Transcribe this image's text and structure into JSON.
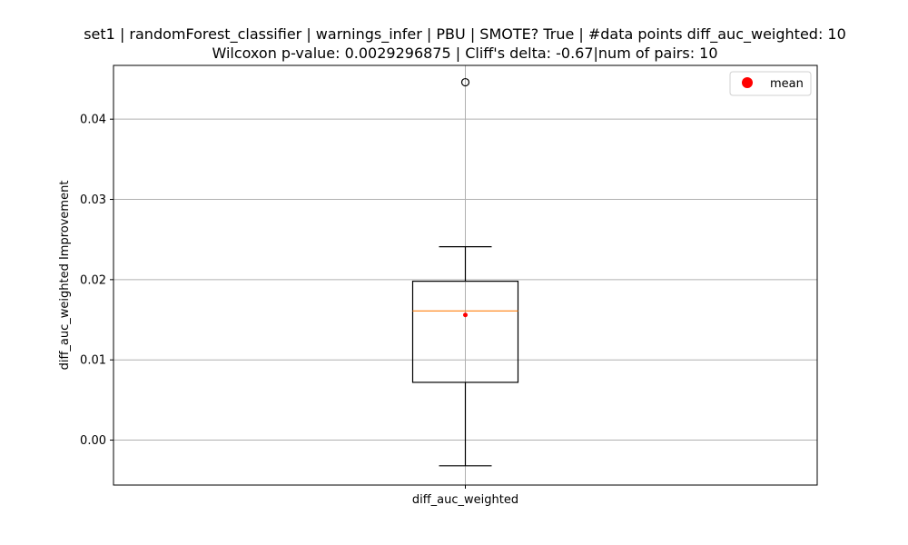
{
  "chart_data": {
    "type": "box",
    "title_line1": "set1 | randomForest_classifier | warnings_infer | PBU | SMOTE? True | #data points diff_auc_weighted: 10",
    "title_line2": "Wilcoxon p-value: 0.0029296875 | Cliff's delta: -0.67|num of pairs: 10",
    "xlabel": "",
    "ylabel": "diff_auc_weighted Improvement",
    "categories": [
      "diff_auc_weighted"
    ],
    "ylim": [
      -0.0056,
      0.0467
    ],
    "yticks": [
      0.0,
      0.01,
      0.02,
      0.03,
      0.04
    ],
    "ytick_labels": [
      "0.00",
      "0.01",
      "0.02",
      "0.03",
      "0.04"
    ],
    "grid": true,
    "legend": {
      "position": "top-right",
      "entries": [
        "mean"
      ]
    },
    "box": {
      "whisker_low": -0.0032,
      "q1": 0.0072,
      "median": 0.0161,
      "q3": 0.0198,
      "whisker_high": 0.0241,
      "mean": 0.0156,
      "outliers": [
        0.0446
      ]
    },
    "colors": {
      "box": "#000000",
      "median": "#ff7f0e",
      "mean": "#ff0000",
      "grid": "#b0b0b0"
    }
  }
}
